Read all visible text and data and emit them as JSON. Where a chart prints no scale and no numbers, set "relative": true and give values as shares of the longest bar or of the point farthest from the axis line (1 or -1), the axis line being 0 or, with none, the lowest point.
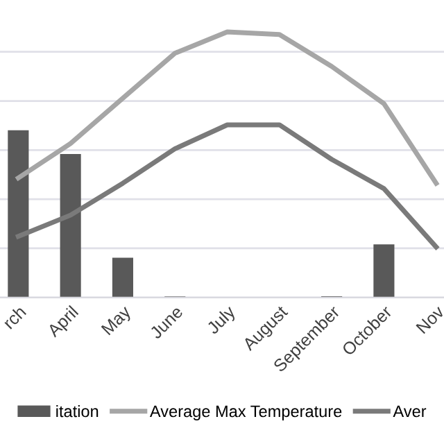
{
  "chart_data": {
    "type": "bar",
    "relative": true,
    "categories": [
      "rch",
      "April",
      "May",
      "June",
      "July",
      "August",
      "September",
      "October",
      "Nov"
    ],
    "series": [
      {
        "name": "itation",
        "color": "#595959",
        "values": [
          0.63,
          0.54,
          0.15,
          0.004,
          0,
          0,
          0.005,
          0.2,
          null
        ]
      },
      {
        "name": "Average Max Temperature",
        "type": "line",
        "color": "#a6a6a6",
        "values": [
          0.45,
          0.58,
          0.75,
          0.92,
          1,
          0.99,
          0.87,
          0.73,
          0.43
        ]
      },
      {
        "name": "Aver",
        "type": "line",
        "color": "#7a7a7a",
        "values": [
          0.23,
          0.31,
          0.43,
          0.56,
          0.65,
          0.65,
          0.52,
          0.41,
          0.19
        ]
      }
    ],
    "grid": "y",
    "legend": "bottom"
  }
}
